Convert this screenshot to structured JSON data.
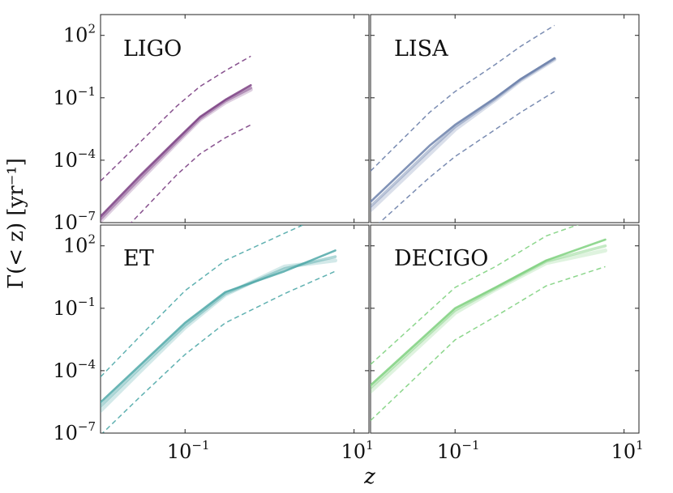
{
  "chart_data": {
    "type": "line",
    "xscale": "log",
    "yscale": "log",
    "xlim": [
      0.01,
      15
    ],
    "ylim": [
      1e-07,
      1000
    ],
    "xlabel": "z",
    "ylabel": "Γ(< z)  [yr⁻¹]",
    "x_ticks": [
      {
        "value": 0.1,
        "label_base": "10",
        "label_exp": "−1"
      },
      {
        "value": 10,
        "label_base": "10",
        "label_exp": "1"
      }
    ],
    "y_ticks": [
      {
        "value": 100,
        "label_base": "10",
        "label_exp": "2"
      },
      {
        "value": 0.1,
        "label_base": "10",
        "label_exp": "−1"
      },
      {
        "value": 0.0001,
        "label_base": "10",
        "label_exp": "−4"
      },
      {
        "value": 1e-07,
        "label_base": "10",
        "label_exp": "−7"
      }
    ],
    "panels": [
      {
        "label": "LIGO",
        "color": "#7b3f83",
        "series": [
          {
            "name": "central-1",
            "style": "solid",
            "x": [
              0.01,
              0.03,
              0.08,
              0.15,
              0.3,
              0.6
            ],
            "y": [
              2e-07,
              2e-05,
              0.001,
              0.012,
              0.08,
              0.4
            ]
          },
          {
            "name": "central-2",
            "style": "solid",
            "x": [
              0.01,
              0.03,
              0.08,
              0.15,
              0.3,
              0.6
            ],
            "y": [
              1.5e-07,
              1.5e-05,
              0.0008,
              0.01,
              0.07,
              0.3
            ]
          },
          {
            "name": "central-3",
            "style": "solid",
            "x": [
              0.01,
              0.03,
              0.08,
              0.15,
              0.3,
              0.6
            ],
            "y": [
              1.2e-07,
              1.2e-05,
              0.0007,
              0.009,
              0.06,
              0.25
            ]
          },
          {
            "name": "upper-bound",
            "style": "dashed",
            "x": [
              0.01,
              0.03,
              0.08,
              0.15,
              0.3,
              0.6
            ],
            "y": [
              1e-05,
              0.0008,
              0.04,
              0.35,
              2,
              10
            ]
          },
          {
            "name": "lower-bound",
            "style": "dashed",
            "x": [
              0.01,
              0.03,
              0.08,
              0.15,
              0.3,
              0.6
            ],
            "y": [
              3e-09,
              3e-07,
              2e-05,
              0.0002,
              0.0012,
              0.005
            ]
          }
        ]
      },
      {
        "label": "LISA",
        "color": "#6b80aa",
        "series": [
          {
            "name": "central-1",
            "style": "solid",
            "x": [
              0.01,
              0.05,
              0.1,
              0.3,
              0.6,
              1.5
            ],
            "y": [
              1e-06,
              0.0005,
              0.005,
              0.1,
              0.8,
              8
            ]
          },
          {
            "name": "central-2",
            "style": "solid",
            "x": [
              0.01,
              0.05,
              0.1,
              0.3,
              0.6,
              1.5
            ],
            "y": [
              6e-07,
              0.0003,
              0.004,
              0.09,
              0.75,
              7.5
            ]
          },
          {
            "name": "central-3",
            "style": "solid",
            "x": [
              0.01,
              0.05,
              0.1,
              0.3,
              0.6,
              1.5
            ],
            "y": [
              4e-07,
              0.0002,
              0.003,
              0.08,
              0.7,
              7
            ]
          },
          {
            "name": "upper-bound",
            "style": "dashed",
            "x": [
              0.01,
              0.05,
              0.1,
              0.3,
              0.6,
              1.5
            ],
            "y": [
              3e-05,
              0.02,
              0.2,
              4,
              30,
              300
            ]
          },
          {
            "name": "lower-bound",
            "style": "dashed",
            "x": [
              0.01,
              0.05,
              0.1,
              0.3,
              0.6,
              1.5
            ],
            "y": [
              4e-08,
              1.5e-05,
              0.00015,
              0.003,
              0.02,
              0.2
            ]
          }
        ]
      },
      {
        "label": "ET",
        "color": "#4fa8a8",
        "series": [
          {
            "name": "central-1",
            "style": "solid",
            "x": [
              0.01,
              0.03,
              0.1,
              0.3,
              1.5,
              6
            ],
            "y": [
              3e-06,
              0.0002,
              0.02,
              0.6,
              6,
              60
            ]
          },
          {
            "name": "central-2",
            "style": "solid",
            "x": [
              0.01,
              0.03,
              0.1,
              0.3,
              1.5,
              6
            ],
            "y": [
              2e-06,
              0.00015,
              0.015,
              0.5,
              8,
              30
            ]
          },
          {
            "name": "central-3",
            "style": "solid",
            "x": [
              0.01,
              0.03,
              0.1,
              0.3,
              1.5,
              6
            ],
            "y": [
              1.2e-06,
              0.0001,
              0.012,
              0.45,
              10,
              20
            ]
          },
          {
            "name": "upper-bound",
            "style": "dashed",
            "x": [
              0.01,
              0.03,
              0.1,
              0.3,
              1.5,
              6
            ],
            "y": [
              5e-05,
              0.005,
              0.7,
              20,
              400,
              5000
            ]
          },
          {
            "name": "lower-bound",
            "style": "dashed",
            "x": [
              0.01,
              0.03,
              0.1,
              0.3,
              1.5,
              6
            ],
            "y": [
              8e-08,
              6e-06,
              0.0006,
              0.02,
              0.5,
              6
            ]
          }
        ]
      },
      {
        "label": "DECIGO",
        "color": "#7fd17f",
        "series": [
          {
            "name": "central-1",
            "style": "solid",
            "x": [
              0.01,
              0.1,
              0.3,
              1.2,
              6
            ],
            "y": [
              2e-05,
              0.1,
              1,
              20,
              200
            ]
          },
          {
            "name": "central-2",
            "style": "solid",
            "x": [
              0.01,
              0.1,
              0.3,
              1.2,
              6
            ],
            "y": [
              1.5e-05,
              0.08,
              0.9,
              18,
              100
            ]
          },
          {
            "name": "central-3",
            "style": "solid",
            "x": [
              0.01,
              0.1,
              0.3,
              1.2,
              6
            ],
            "y": [
              1e-05,
              0.06,
              0.8,
              15,
              60
            ]
          },
          {
            "name": "upper-bound",
            "style": "dashed",
            "x": [
              0.01,
              0.1,
              0.3,
              1.2,
              6
            ],
            "y": [
              0.0002,
              1,
              10,
              300,
              3000
            ]
          },
          {
            "name": "lower-bound",
            "style": "dashed",
            "x": [
              0.01,
              0.1,
              0.3,
              1.2,
              6
            ],
            "y": [
              4e-07,
              0.003,
              0.04,
              1.2,
              10
            ]
          }
        ]
      }
    ]
  }
}
